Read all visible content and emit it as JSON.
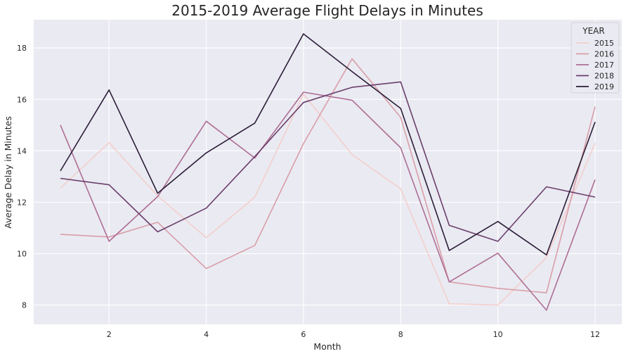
{
  "chart_data": {
    "type": "line",
    "title": "2015-2019 Average Flight Delays in Minutes",
    "xlabel": "Month",
    "ylabel": "Average Delay in Minutes",
    "x": [
      1,
      2,
      3,
      4,
      5,
      6,
      7,
      8,
      9,
      10,
      11,
      12
    ],
    "xlim": [
      0.45,
      12.55
    ],
    "ylim": [
      7.25,
      19.1
    ],
    "xticks": [
      2,
      4,
      6,
      8,
      10,
      12
    ],
    "yticks": [
      8,
      10,
      12,
      14,
      16,
      18
    ],
    "grid": true,
    "legend": {
      "title": "YEAR",
      "placement": "top-right"
    },
    "series": [
      {
        "name": "2015",
        "color": "#f2cfcc",
        "values": [
          12.55,
          14.32,
          12.25,
          10.62,
          12.2,
          16.2,
          13.85,
          12.52,
          8.05,
          8.0,
          9.85,
          14.3
        ]
      },
      {
        "name": "2016",
        "color": "#d99ea8",
        "values": [
          10.75,
          10.65,
          11.22,
          9.42,
          10.32,
          14.28,
          17.58,
          15.3,
          8.9,
          8.65,
          8.48,
          15.72
        ]
      },
      {
        "name": "2017",
        "color": "#ad6e95",
        "values": [
          15.0,
          10.48,
          12.22,
          15.15,
          13.72,
          16.28,
          15.97,
          14.12,
          8.9,
          10.02,
          7.8,
          12.88
        ]
      },
      {
        "name": "2018",
        "color": "#6a3e6b",
        "values": [
          12.93,
          12.68,
          10.85,
          11.77,
          13.78,
          15.88,
          16.47,
          16.68,
          11.1,
          10.48,
          12.6,
          12.2
        ]
      },
      {
        "name": "2019",
        "color": "#2b1d37",
        "values": [
          13.22,
          16.37,
          12.35,
          13.92,
          15.08,
          18.55,
          17.08,
          15.65,
          10.12,
          11.25,
          9.95,
          15.12
        ]
      }
    ]
  }
}
